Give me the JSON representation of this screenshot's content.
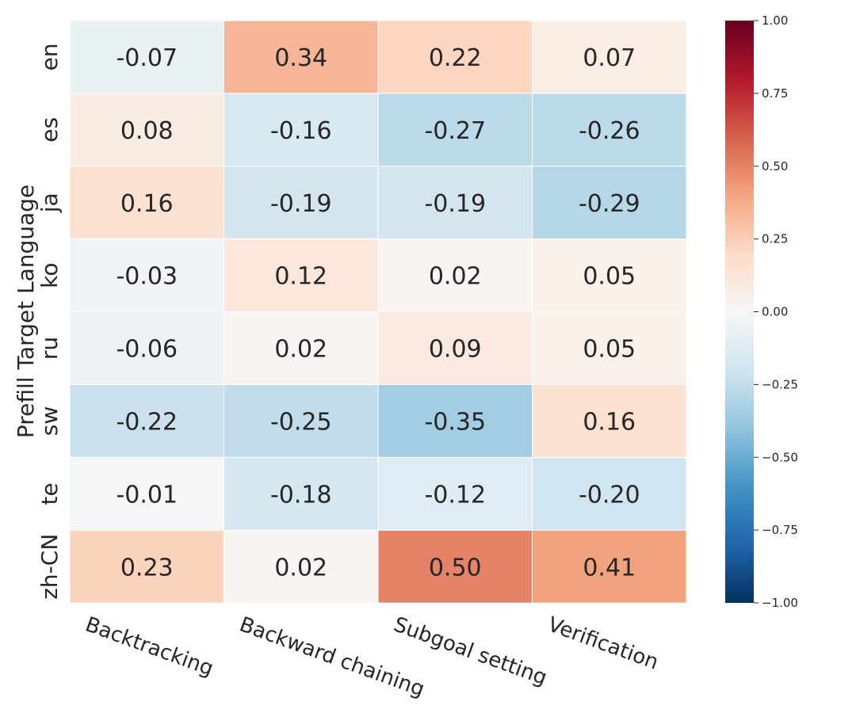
{
  "chart_data": {
    "type": "heatmap",
    "title": "",
    "xlabel": "",
    "ylabel": "Prefill Target Language",
    "rows": [
      "en",
      "es",
      "ja",
      "ko",
      "ru",
      "sw",
      "te",
      "zh-CN"
    ],
    "columns": [
      "Backtracking",
      "Backward chaining",
      "Subgoal setting",
      "Verification"
    ],
    "values": [
      [
        -0.07,
        0.34,
        0.22,
        0.07
      ],
      [
        0.08,
        -0.16,
        -0.27,
        -0.26
      ],
      [
        0.16,
        -0.19,
        -0.19,
        -0.29
      ],
      [
        -0.03,
        0.12,
        0.02,
        0.05
      ],
      [
        -0.06,
        0.02,
        0.09,
        0.05
      ],
      [
        -0.22,
        -0.25,
        -0.35,
        0.16
      ],
      [
        -0.01,
        -0.18,
        -0.12,
        -0.2
      ],
      [
        0.23,
        0.02,
        0.5,
        0.41
      ]
    ],
    "colormap": "RdBu_r",
    "vmin": -1.0,
    "vmax": 1.0,
    "colorbar_ticks": [
      "1.00",
      "0.75",
      "0.50",
      "0.25",
      "0.00",
      "−0.25",
      "−0.50",
      "−0.75",
      "−1.00"
    ],
    "colorbar_tick_values": [
      1.0,
      0.75,
      0.5,
      0.25,
      0.0,
      -0.25,
      -0.5,
      -0.75,
      -1.0
    ]
  }
}
